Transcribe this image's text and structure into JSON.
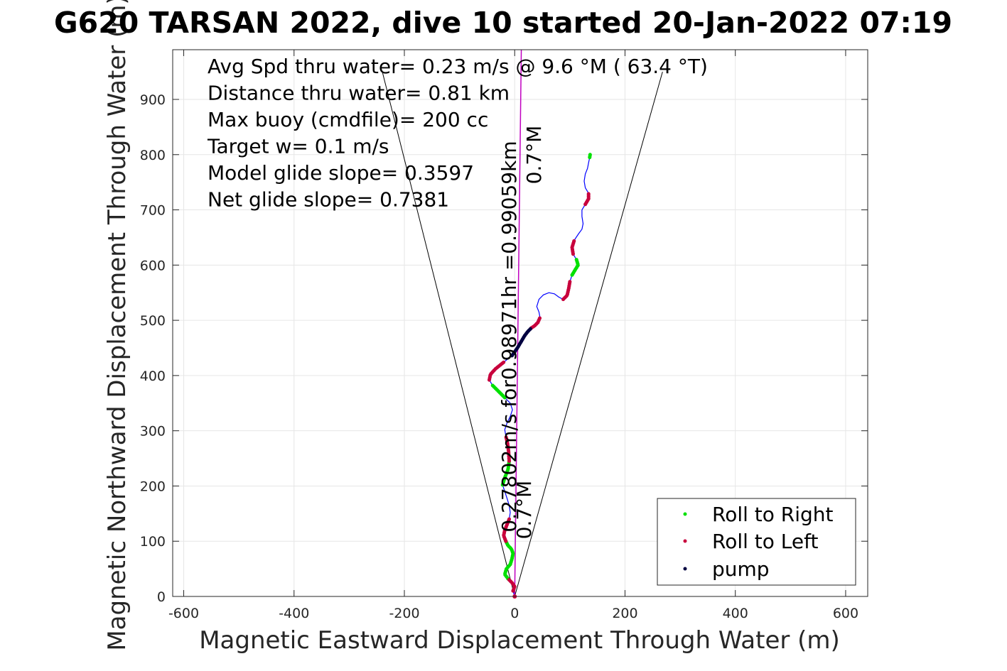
{
  "chart_data": {
    "type": "scatter",
    "title": "G620 TARSAN 2022, dive 10 started 20-Jan-2022 07:19",
    "xlabel": "Magnetic Eastward Displacement Through Water (m)",
    "ylabel": "Magnetic Northward Displacement Through Water (m)",
    "xlim": [
      -620,
      640
    ],
    "ylim": [
      0,
      990
    ],
    "xticks": [
      -600,
      -400,
      -200,
      0,
      200,
      400,
      600
    ],
    "yticks": [
      0,
      100,
      200,
      300,
      400,
      500,
      600,
      700,
      800,
      900
    ],
    "grid": true,
    "legend_position": "bottom-right",
    "colors": {
      "roll_right": "#00e000",
      "roll_left": "#c8003c",
      "pump": "#000040",
      "track": "#0000ff",
      "heading": "#c000c0",
      "cone": "#000000"
    },
    "annotations": [
      "Avg Spd thru water=  0.23 m/s @   9.6 °M ( 63.4 °T)",
      "Distance thru water=  0.81 km",
      "Max buoy (cmdfile)= 200 cc",
      "Target w= 0.1 m/s",
      "Model glide slope= 0.3597",
      "Net glide slope= 0.7381"
    ],
    "vertical_labels": {
      "heading_line": "0.27802m/s for0.98971hr =0.99059km",
      "heading_top": "0.7°M",
      "heading_bottom": "0.7°M"
    },
    "series": [
      {
        "name": "Roll to Right"
      },
      {
        "name": "Roll to Left"
      },
      {
        "name": "pump"
      }
    ],
    "track": [
      [
        0,
        0
      ],
      [
        -3,
        10
      ],
      [
        0,
        18
      ],
      [
        -5,
        25
      ],
      [
        -12,
        32
      ],
      [
        -18,
        40
      ],
      [
        -15,
        50
      ],
      [
        -8,
        58
      ],
      [
        -5,
        68
      ],
      [
        -3,
        78
      ],
      [
        -6,
        86
      ],
      [
        -12,
        92
      ],
      [
        -16,
        100
      ],
      [
        -20,
        110
      ],
      [
        -18,
        120
      ],
      [
        -14,
        130
      ],
      [
        -10,
        140
      ],
      [
        -8,
        152
      ],
      [
        -10,
        165
      ],
      [
        -14,
        178
      ],
      [
        -18,
        190
      ],
      [
        -22,
        202
      ],
      [
        -18,
        215
      ],
      [
        -12,
        230
      ],
      [
        -10,
        245
      ],
      [
        -11,
        262
      ],
      [
        -13,
        278
      ],
      [
        -16,
        290
      ],
      [
        -18,
        302
      ],
      [
        -14,
        314
      ],
      [
        -8,
        326
      ],
      [
        -4,
        338
      ],
      [
        -8,
        350
      ],
      [
        -18,
        360
      ],
      [
        -30,
        372
      ],
      [
        -40,
        382
      ],
      [
        -46,
        392
      ],
      [
        -44,
        402
      ],
      [
        -35,
        412
      ],
      [
        -20,
        424
      ],
      [
        -5,
        436
      ],
      [
        5,
        450
      ],
      [
        12,
        462
      ],
      [
        18,
        472
      ],
      [
        24,
        480
      ],
      [
        30,
        486
      ],
      [
        36,
        490
      ],
      [
        42,
        496
      ],
      [
        46,
        505
      ],
      [
        44,
        515
      ],
      [
        40,
        525
      ],
      [
        44,
        538
      ],
      [
        52,
        546
      ],
      [
        62,
        550
      ],
      [
        72,
        548
      ],
      [
        80,
        542
      ],
      [
        88,
        538
      ],
      [
        95,
        545
      ],
      [
        98,
        558
      ],
      [
        100,
        570
      ],
      [
        104,
        582
      ],
      [
        110,
        592
      ],
      [
        115,
        600
      ],
      [
        112,
        610
      ],
      [
        106,
        620
      ],
      [
        104,
        632
      ],
      [
        108,
        645
      ],
      [
        116,
        657
      ],
      [
        122,
        665
      ],
      [
        124,
        675
      ],
      [
        122,
        688
      ],
      [
        122,
        700
      ],
      [
        128,
        710
      ],
      [
        134,
        720
      ],
      [
        134,
        730
      ],
      [
        128,
        740
      ],
      [
        126,
        752
      ],
      [
        128,
        765
      ],
      [
        132,
        775
      ],
      [
        134,
        785
      ],
      [
        136,
        795
      ],
      [
        137,
        802
      ]
    ],
    "heading_line": [
      [
        0,
        0
      ],
      [
        12,
        1010
      ]
    ],
    "cone_left": [
      [
        0,
        0
      ],
      [
        -240,
        950
      ]
    ],
    "cone_right": [
      [
        0,
        0
      ],
      [
        268,
        950
      ]
    ],
    "roll_right_segments": [
      [
        4,
        12
      ],
      [
        21,
        24
      ],
      [
        33,
        35
      ],
      [
        60,
        63
      ],
      [
        80,
        83
      ]
    ],
    "roll_left_segments": [
      [
        1,
        4
      ],
      [
        12,
        16
      ],
      [
        24,
        27
      ],
      [
        36,
        39
      ],
      [
        45,
        48
      ],
      [
        56,
        59
      ],
      [
        64,
        66
      ],
      [
        72,
        74
      ]
    ],
    "pump_segments": [
      [
        40,
        45
      ]
    ]
  }
}
